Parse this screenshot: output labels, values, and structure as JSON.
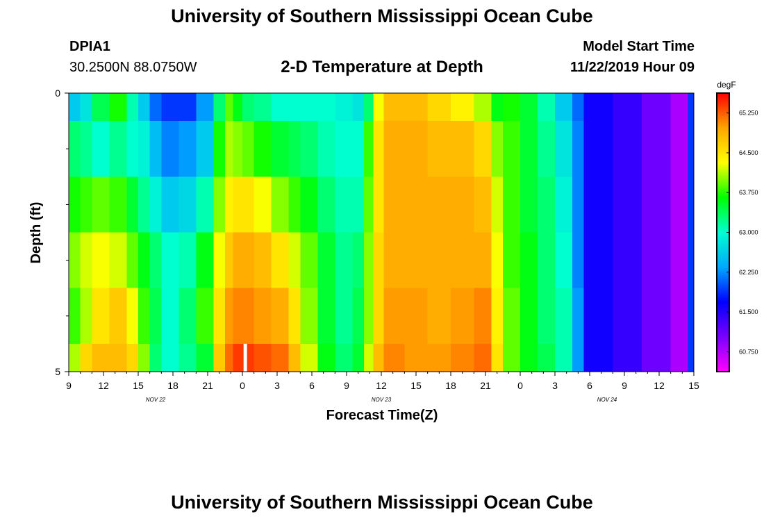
{
  "header": {
    "title": "University of Southern Mississippi Ocean Cube",
    "station_id": "DPIA1",
    "station_coords": "30.2500N 88.0750W",
    "plot_title": "2-D Temperature at Depth",
    "start_label": "Model Start Time",
    "start_value": "11/22/2019 Hour 09"
  },
  "footer": {
    "title": "University of Southern Mississippi Ocean Cube"
  },
  "chart_data": {
    "type": "heatmap",
    "xlabel": "Forecast Time(Z)",
    "ylabel": "Depth (ft)",
    "x_hours_range": [
      9,
      63
    ],
    "ylim": [
      0,
      5
    ],
    "y_tick_labels": [
      {
        "value": 0,
        "label": "0"
      },
      {
        "value": 5,
        "label": "5"
      }
    ],
    "y_minor_ticks": [
      1,
      2,
      3,
      4
    ],
    "x_tick_labels": [
      "9",
      "12",
      "15",
      "18",
      "21",
      "0",
      "3",
      "6",
      "9",
      "12",
      "15",
      "18",
      "21",
      "0",
      "3",
      "6",
      "9",
      "12",
      "15"
    ],
    "x_tick_hours": [
      9,
      12,
      15,
      18,
      21,
      24,
      27,
      30,
      33,
      36,
      39,
      42,
      45,
      48,
      51,
      54,
      57,
      60,
      63
    ],
    "date_labels": [
      {
        "text": "NOV  22",
        "hour": 16.5
      },
      {
        "text": "NOV  23",
        "hour": 36
      },
      {
        "text": "NOV  24",
        "hour": 55.5
      }
    ],
    "colorbar": {
      "unit": "degF",
      "range": [
        60.375,
        65.625
      ],
      "ticks": [
        "65.250",
        "64.500",
        "63.750",
        "63.000",
        "62.250",
        "61.500",
        "60.750"
      ],
      "tick_values": [
        65.25,
        64.5,
        63.75,
        63.0,
        62.25,
        61.5,
        60.75
      ],
      "colors": [
        "#ff00ff",
        "#7b00ff",
        "#0000ff",
        "#00a8ff",
        "#00ffd0",
        "#00ff00",
        "#ffff00",
        "#ffa500",
        "#ff0000"
      ]
    },
    "depth_layer_bounds": [
      0,
      0.5,
      1.5,
      2.5,
      3.5,
      4.5,
      5
    ],
    "segments": [
      {
        "h0": 9,
        "h1": 10,
        "t": [
          62.6,
          63.3,
          63.7,
          64.0,
          63.8,
          64.1
        ]
      },
      {
        "h0": 10,
        "h1": 11,
        "t": [
          62.8,
          63.2,
          63.8,
          64.2,
          64.1,
          64.6
        ]
      },
      {
        "h0": 11,
        "h1": 12.5,
        "t": [
          63.4,
          63.0,
          63.9,
          64.3,
          64.5,
          64.8
        ]
      },
      {
        "h0": 12.5,
        "h1": 14,
        "t": [
          63.7,
          63.2,
          63.8,
          64.2,
          64.7,
          64.8
        ]
      },
      {
        "h0": 14,
        "h1": 15,
        "t": [
          63.1,
          63.0,
          63.5,
          63.9,
          64.3,
          64.6
        ]
      },
      {
        "h0": 15,
        "h1": 16,
        "t": [
          62.6,
          62.9,
          63.2,
          63.6,
          63.8,
          64.0
        ]
      },
      {
        "h0": 16,
        "h1": 17,
        "t": [
          62.1,
          62.5,
          62.9,
          63.3,
          63.4,
          63.3
        ]
      },
      {
        "h0": 17,
        "h1": 18.5,
        "t": [
          61.9,
          62.2,
          62.6,
          63.0,
          63.0,
          63.0
        ]
      },
      {
        "h0": 18.5,
        "h1": 20,
        "t": [
          61.9,
          62.3,
          62.7,
          63.1,
          63.3,
          63.2
        ]
      },
      {
        "h0": 20,
        "h1": 21.5,
        "t": [
          62.3,
          62.6,
          63.1,
          63.6,
          63.8,
          63.5
        ]
      },
      {
        "h0": 21.5,
        "h1": 22.5,
        "t": [
          63.3,
          63.7,
          64.0,
          64.3,
          64.5,
          64.7
        ]
      },
      {
        "h0": 22.5,
        "h1": 23.2,
        "t": [
          63.9,
          64.1,
          64.4,
          64.7,
          65.0,
          65.2
        ]
      },
      {
        "h0": 23.2,
        "h1": 24,
        "t": [
          63.6,
          64.0,
          64.5,
          64.9,
          65.1,
          65.4
        ]
      },
      {
        "h0": 24,
        "h1": 25,
        "t": [
          63.3,
          63.9,
          64.5,
          64.9,
          65.1,
          65.4
        ]
      },
      {
        "h0": 25,
        "h1": 26.5,
        "t": [
          63.2,
          63.7,
          64.3,
          64.8,
          65.0,
          65.3
        ]
      },
      {
        "h0": 26.5,
        "h1": 28,
        "t": [
          63.0,
          63.5,
          64.0,
          64.5,
          64.9,
          65.2
        ]
      },
      {
        "h0": 28,
        "h1": 29,
        "t": [
          63.0,
          63.4,
          63.8,
          64.2,
          64.5,
          64.8
        ]
      },
      {
        "h0": 29,
        "h1": 30.5,
        "t": [
          63.0,
          63.3,
          63.6,
          63.9,
          64.0,
          64.2
        ]
      },
      {
        "h0": 30.5,
        "h1": 32,
        "t": [
          63.0,
          63.1,
          63.3,
          63.5,
          63.5,
          63.6
        ]
      },
      {
        "h0": 32,
        "h1": 33.5,
        "t": [
          62.9,
          63.0,
          63.1,
          63.2,
          63.2,
          63.3
        ]
      },
      {
        "h0": 33.5,
        "h1": 34.5,
        "t": [
          62.8,
          63.0,
          63.1,
          63.3,
          63.4,
          63.5
        ]
      },
      {
        "h0": 34.5,
        "h1": 35.3,
        "t": [
          63.3,
          63.8,
          63.9,
          64.0,
          64.0,
          64.2
        ]
      },
      {
        "h0": 35.3,
        "h1": 36.2,
        "t": [
          64.3,
          64.5,
          64.5,
          64.6,
          64.6,
          64.8
        ]
      },
      {
        "h0": 36.2,
        "h1": 38,
        "t": [
          64.8,
          64.9,
          64.9,
          64.9,
          65.0,
          65.1
        ]
      },
      {
        "h0": 38,
        "h1": 40,
        "t": [
          64.8,
          64.9,
          64.9,
          64.9,
          65.0,
          65.0
        ]
      },
      {
        "h0": 40,
        "h1": 42,
        "t": [
          64.6,
          64.8,
          64.9,
          64.9,
          64.9,
          65.0
        ]
      },
      {
        "h0": 42,
        "h1": 44,
        "t": [
          64.4,
          64.8,
          64.9,
          64.9,
          65.0,
          65.1
        ]
      },
      {
        "h0": 44,
        "h1": 45.5,
        "t": [
          64.1,
          64.6,
          64.8,
          64.9,
          65.1,
          65.2
        ]
      },
      {
        "h0": 45.5,
        "h1": 46.5,
        "t": [
          63.6,
          64.0,
          64.2,
          64.3,
          64.4,
          64.5
        ]
      },
      {
        "h0": 46.5,
        "h1": 48,
        "t": [
          63.7,
          63.8,
          63.8,
          63.8,
          63.9,
          63.9
        ]
      },
      {
        "h0": 48,
        "h1": 49.5,
        "t": [
          63.5,
          63.5,
          63.5,
          63.6,
          63.6,
          63.6
        ]
      },
      {
        "h0": 49.5,
        "h1": 51,
        "t": [
          63.1,
          63.2,
          63.3,
          63.3,
          63.3,
          63.4
        ]
      },
      {
        "h0": 51,
        "h1": 52.5,
        "t": [
          62.6,
          62.8,
          62.9,
          63.0,
          63.1,
          63.1
        ]
      },
      {
        "h0": 52.5,
        "h1": 53.5,
        "t": [
          62.1,
          62.2,
          62.2,
          62.2,
          62.3,
          62.3
        ]
      },
      {
        "h0": 53.5,
        "h1": 56,
        "t": [
          61.6,
          61.6,
          61.6,
          61.6,
          61.6,
          61.6
        ]
      },
      {
        "h0": 56,
        "h1": 58.5,
        "t": [
          61.4,
          61.4,
          61.4,
          61.4,
          61.4,
          61.4
        ]
      },
      {
        "h0": 58.5,
        "h1": 61,
        "t": [
          61.1,
          61.1,
          61.1,
          61.1,
          61.1,
          61.1
        ]
      },
      {
        "h0": 61,
        "h1": 62.5,
        "t": [
          60.8,
          60.8,
          60.8,
          60.8,
          60.8,
          60.8
        ]
      },
      {
        "h0": 62.5,
        "h1": 63,
        "t": [
          61.9,
          61.9,
          61.9,
          61.9,
          61.9,
          61.9
        ]
      }
    ],
    "missing_cells": [
      {
        "h0": 24.1,
        "h1": 24.4,
        "depth0": 4.5,
        "depth1": 5
      }
    ]
  }
}
